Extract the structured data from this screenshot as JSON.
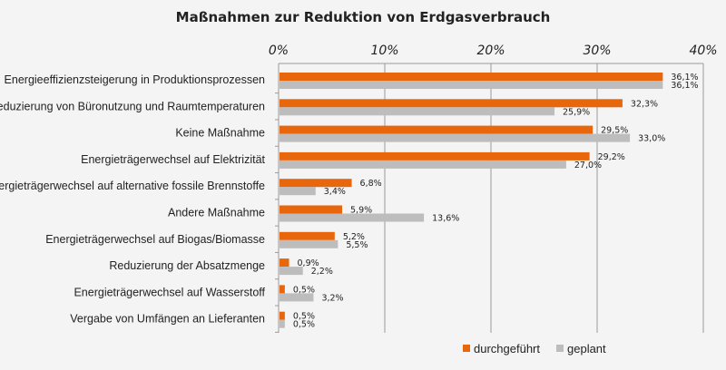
{
  "chart_data": {
    "type": "bar",
    "orientation": "horizontal",
    "title": "Maßnahmen zur Reduktion von Erdgasverbrauch",
    "categories": [
      "Energieeffizienzsteigerung in Produktionsprozessen",
      "Reduzierung von Büronutzung und Raumtemperaturen",
      "Keine Maßnahme",
      "Energieträgerwechsel auf Elektrizität",
      "Energieträgerwechsel auf alternative fossile Brennstoffe",
      "Andere Maßnahme",
      "Energieträgerwechsel auf Biogas/Biomasse",
      "Reduzierung der Absatzmenge",
      "Energieträgerwechsel auf Wasserstoff",
      "Vergabe von Umfängen an Lieferanten"
    ],
    "series": [
      {
        "name": "durchgeführt",
        "color": "#e8670c",
        "values": [
          36.1,
          32.3,
          29.5,
          29.2,
          6.8,
          5.9,
          5.2,
          0.9,
          0.5,
          0.5
        ],
        "labels": [
          "36,1%",
          "32,3%",
          "29,5%",
          "29,2%",
          "6,8%",
          "5,9%",
          "5,2%",
          "0,9%",
          "0,5%",
          "0,5%"
        ]
      },
      {
        "name": "geplant",
        "color": "#bdbdbd",
        "values": [
          36.1,
          25.9,
          33.0,
          27.0,
          3.4,
          13.6,
          5.5,
          2.2,
          3.2,
          0.5
        ],
        "labels": [
          "36,1%",
          "25,9%",
          "33,0%",
          "27,0%",
          "3,4%",
          "13,6%",
          "5,5%",
          "2,2%",
          "3,2%",
          "0,5%"
        ]
      }
    ],
    "xlim": [
      0,
      40
    ],
    "xticks": [
      0,
      10,
      20,
      30,
      40
    ],
    "xtick_labels": [
      "0%",
      "10%",
      "20%",
      "30%",
      "40%"
    ],
    "xaxis_position": "top",
    "grid": "vertical",
    "legend": "bottom-right"
  }
}
